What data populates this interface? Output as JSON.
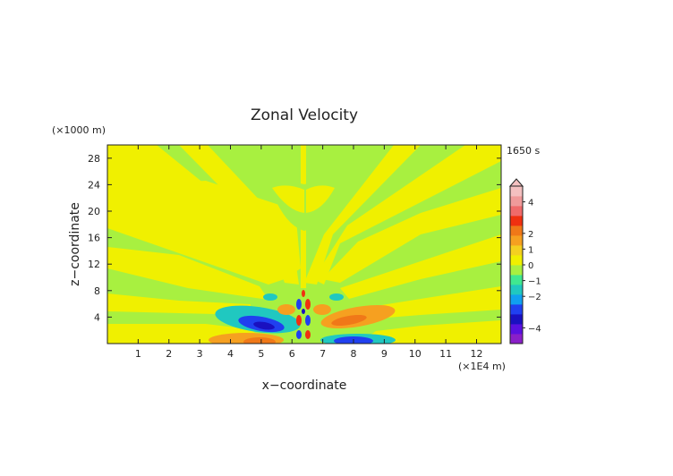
{
  "chart_data": {
    "type": "heatmap",
    "title": "Zonal Velocity",
    "xlabel": "x−coordinate",
    "ylabel": "z−coordinate",
    "x_unit": "(×1E4 m)",
    "y_unit": "(×1000 m)",
    "time_label": "1650 s",
    "xlim": [
      0,
      12.8
    ],
    "ylim": [
      0,
      30
    ],
    "x_ticks": [
      "1",
      "2",
      "3",
      "4",
      "5",
      "6",
      "7",
      "8",
      "9",
      "10",
      "11",
      "12"
    ],
    "y_ticks": [
      "4",
      "8",
      "12",
      "16",
      "20",
      "24",
      "28"
    ],
    "grid": false,
    "colorbar": {
      "labels": [
        "4",
        "2",
        "1",
        "0",
        "−1",
        "−2",
        "−4"
      ],
      "label_values": [
        4,
        2,
        1,
        0,
        -1,
        -2,
        -4
      ],
      "levels": [
        -5,
        -4,
        -3,
        -2,
        -1.5,
        -1,
        -0.5,
        -0.25,
        0,
        0.25,
        0.5,
        1,
        1.5,
        2,
        3,
        4,
        5
      ],
      "colors": [
        "#8a1fc9",
        "#5a10e0",
        "#1a10c0",
        "#2040f0",
        "#10a0f0",
        "#20c8c0",
        "#40e890",
        "#a8f040",
        "#f0f000",
        "#f4d020",
        "#f6a020",
        "#f07818",
        "#f03010",
        "#f06a6a",
        "#f09a9a",
        "#f4c0c0"
      ]
    }
  }
}
